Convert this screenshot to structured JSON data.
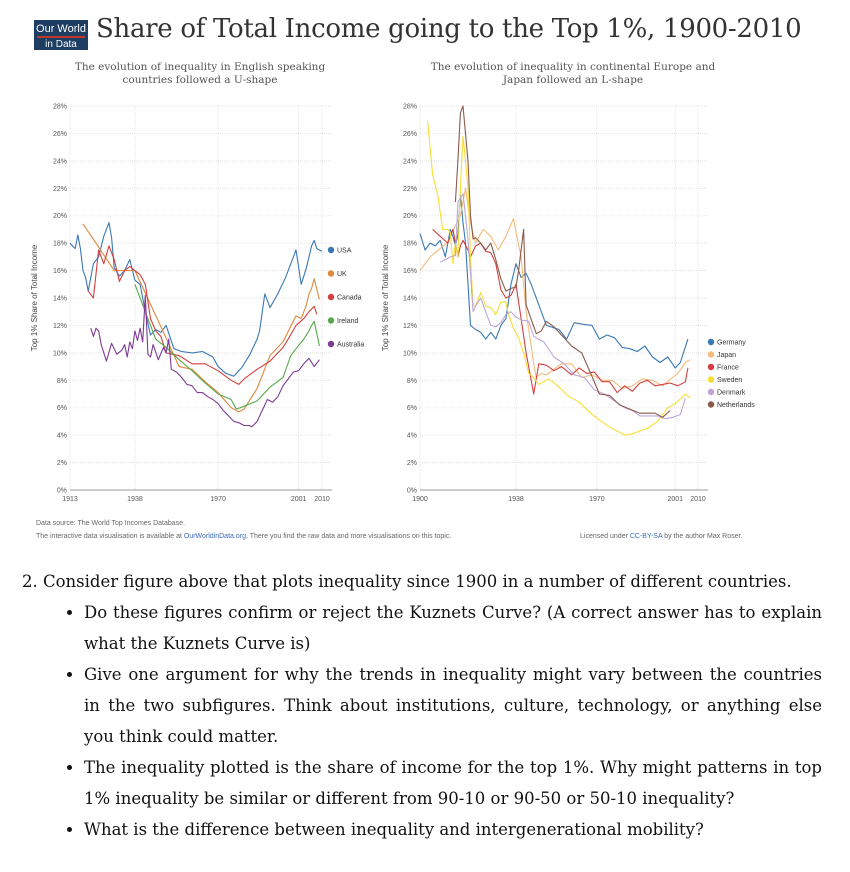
{
  "header": {
    "logo_line1": "Our World",
    "logo_line2": "in Data",
    "title": "Share of Total Income going to the Top 1%, 1900-2010"
  },
  "chart_data": [
    {
      "type": "line",
      "subtitle": "The evolution of inequality in English speaking countries followed a U-shape",
      "ylabel": "Top 1% Share of Total Income",
      "xlim": [
        1913,
        2010
      ],
      "ylim": [
        0,
        28
      ],
      "xticks": [
        "1913",
        "1938",
        "1970",
        "2001",
        "2010"
      ],
      "yticks": [
        "0%",
        "2%",
        "4%",
        "6%",
        "8%",
        "10%",
        "12%",
        "14%",
        "16%",
        "18%",
        "20%",
        "22%",
        "24%",
        "26%",
        "28%"
      ],
      "legend": "right",
      "grid": true,
      "series": [
        {
          "name": "USA",
          "color": "#3a78b5",
          "x": [
            1913,
            1915,
            1916,
            1917,
            1918,
            1919,
            1920,
            1922,
            1924,
            1926,
            1928,
            1929,
            1930,
            1932,
            1934,
            1936,
            1938,
            1940,
            1942,
            1944,
            1946,
            1948,
            1950,
            1953,
            1956,
            1960,
            1964,
            1968,
            1970,
            1973,
            1976,
            1979,
            1982,
            1985,
            1986,
            1988,
            1990,
            1993,
            1996,
            1999,
            2000,
            2002,
            2004,
            2006,
            2007,
            2008,
            2010
          ],
          "y": [
            18.0,
            17.6,
            18.6,
            17.6,
            16.0,
            15.5,
            14.5,
            16.5,
            17.0,
            18.5,
            19.5,
            18.4,
            16.2,
            15.6,
            16.0,
            16.8,
            15.3,
            15.0,
            13.0,
            11.3,
            11.7,
            11.5,
            12.0,
            10.3,
            10.1,
            10.0,
            10.1,
            9.7,
            9.0,
            8.5,
            8.3,
            8.9,
            9.8,
            11.0,
            11.6,
            14.3,
            13.3,
            14.3,
            15.5,
            17.0,
            17.5,
            15.0,
            16.2,
            17.8,
            18.2,
            17.6,
            17.4
          ]
        },
        {
          "name": "UK",
          "color": "#e0883c",
          "x": [
            1918,
            1923,
            1930,
            1938,
            1949,
            1955,
            1960,
            1965,
            1970,
            1975,
            1978,
            1980,
            1985,
            1990,
            1995,
            2000,
            2002,
            2004,
            2005,
            2006,
            2007,
            2009
          ],
          "y": [
            19.4,
            18.0,
            16.0,
            16.0,
            11.5,
            9.0,
            8.8,
            7.9,
            7.1,
            6.0,
            5.7,
            5.9,
            7.4,
            9.8,
            10.8,
            12.7,
            12.5,
            13.5,
            14.3,
            14.7,
            15.4,
            13.9
          ]
        },
        {
          "name": "Canada",
          "color": "#d33f3f",
          "x": [
            1920,
            1922,
            1924,
            1926,
            1928,
            1930,
            1932,
            1934,
            1936,
            1938,
            1940,
            1942,
            1944,
            1946,
            1948,
            1950,
            1955,
            1960,
            1965,
            1970,
            1975,
            1978,
            1980,
            1985,
            1990,
            1995,
            1997,
            2000,
            2003,
            2005,
            2007,
            2008
          ],
          "y": [
            14.5,
            14.0,
            17.5,
            16.5,
            17.8,
            16.8,
            15.2,
            16.0,
            16.3,
            16.0,
            15.7,
            15.0,
            12.5,
            11.6,
            11.2,
            10.0,
            9.8,
            9.2,
            9.2,
            8.7,
            8.0,
            7.7,
            8.1,
            8.8,
            9.4,
            10.4,
            11.0,
            12.0,
            12.5,
            13.0,
            13.4,
            12.8
          ]
        },
        {
          "name": "Ireland",
          "color": "#58a84a",
          "x": [
            1938,
            1943,
            1946,
            1950,
            1955,
            1960,
            1965,
            1970,
            1975,
            1977,
            1980,
            1985,
            1990,
            1995,
            1998,
            2000,
            2003,
            2005,
            2006,
            2007,
            2009
          ],
          "y": [
            15.0,
            12.5,
            11.0,
            10.4,
            9.5,
            8.7,
            7.8,
            7.0,
            6.6,
            5.9,
            6.1,
            6.5,
            7.5,
            8.2,
            9.8,
            10.3,
            11.0,
            11.6,
            12.0,
            12.3,
            10.5
          ]
        },
        {
          "name": "Australia",
          "color": "#7e3b94",
          "x": [
            1921,
            1922,
            1923,
            1924,
            1925,
            1927,
            1929,
            1931,
            1933,
            1934,
            1935,
            1936,
            1937,
            1938,
            1939,
            1940,
            1941,
            1942,
            1943,
            1944,
            1945,
            1947,
            1949,
            1950,
            1951,
            1952,
            1954,
            1956,
            1958,
            1960,
            1962,
            1964,
            1966,
            1968,
            1970,
            1972,
            1974,
            1976,
            1978,
            1980,
            1982,
            1983,
            1985,
            1987,
            1989,
            1991,
            1993,
            1995,
            1997,
            1999,
            2001,
            2003,
            2005,
            2007,
            2009
          ],
          "y": [
            11.8,
            11.2,
            11.8,
            11.6,
            10.6,
            9.4,
            10.7,
            9.9,
            10.2,
            10.6,
            9.7,
            10.8,
            10.3,
            11.6,
            10.9,
            11.8,
            10.8,
            14.2,
            9.9,
            9.7,
            10.6,
            9.5,
            10.4,
            10.0,
            11.0,
            8.8,
            8.6,
            8.2,
            7.7,
            7.6,
            7.1,
            7.1,
            6.8,
            6.6,
            6.3,
            5.8,
            5.4,
            5.0,
            4.9,
            4.7,
            4.7,
            4.6,
            5.0,
            5.8,
            6.6,
            6.4,
            6.8,
            7.6,
            8.1,
            8.6,
            8.7,
            9.2,
            9.6,
            9.0,
            9.5
          ]
        }
      ]
    },
    {
      "type": "line",
      "subtitle": "The evolution of inequality in continental Europe and Japan followed an L-shape",
      "ylabel": "Top 1% Share of Total Income",
      "xlim": [
        1900,
        2010
      ],
      "ylim": [
        0,
        28
      ],
      "xticks": [
        "1900",
        "1938",
        "1970",
        "2001",
        "2010"
      ],
      "yticks": [
        "0%",
        "2%",
        "4%",
        "6%",
        "8%",
        "10%",
        "12%",
        "14%",
        "16%",
        "18%",
        "20%",
        "22%",
        "24%",
        "26%",
        "28%"
      ],
      "legend": "right",
      "grid": true,
      "series": [
        {
          "name": "Germany",
          "color": "#3a78b5",
          "x": [
            1900,
            1902,
            1904,
            1906,
            1908,
            1910,
            1912,
            1913,
            1914,
            1915,
            1916,
            1917,
            1918,
            1920,
            1922,
            1924,
            1926,
            1928,
            1930,
            1932,
            1934,
            1936,
            1938,
            1940,
            1942,
            1944,
            1950,
            1955,
            1958,
            1961,
            1964,
            1968,
            1971,
            1974,
            1977,
            1980,
            1983,
            1986,
            1989,
            1992,
            1995,
            1998,
            2001,
            2003,
            2006
          ],
          "y": [
            18.7,
            17.5,
            18.0,
            17.8,
            18.2,
            17.0,
            19.0,
            18.5,
            17.8,
            18.6,
            21.5,
            19.5,
            18.0,
            12.0,
            11.7,
            11.5,
            11.0,
            11.5,
            11.0,
            12.0,
            12.5,
            15.0,
            16.5,
            15.5,
            15.8,
            15.0,
            12.0,
            11.7,
            11.0,
            12.2,
            12.1,
            12.0,
            11.0,
            11.3,
            11.1,
            10.4,
            10.3,
            10.1,
            10.5,
            9.7,
            9.3,
            9.7,
            8.9,
            9.3,
            11.0
          ]
        },
        {
          "name": "Japan",
          "color": "#f4bb7a",
          "x": [
            1900,
            1904,
            1908,
            1911,
            1913,
            1916,
            1918,
            1920,
            1922,
            1925,
            1928,
            1931,
            1934,
            1937,
            1938,
            1940,
            1942,
            1944,
            1945,
            1946,
            1948,
            1950,
            1953,
            1956,
            1960,
            1964,
            1968,
            1972,
            1976,
            1980,
            1984,
            1988,
            1992,
            1996,
            2000,
            2002,
            2005,
            2007
          ],
          "y": [
            16.0,
            17.0,
            17.6,
            18.1,
            18.9,
            20.0,
            22.0,
            19.5,
            18.0,
            19.0,
            18.5,
            17.5,
            18.5,
            19.8,
            18.8,
            17.0,
            13.0,
            10.5,
            9.2,
            8.2,
            8.5,
            8.4,
            8.8,
            9.2,
            9.2,
            8.2,
            8.4,
            8.0,
            8.0,
            7.4,
            7.6,
            8.1,
            8.0,
            7.6,
            8.2,
            8.5,
            9.3,
            9.5
          ]
        },
        {
          "name": "France",
          "color": "#d33f3f",
          "x": [
            1905,
            1908,
            1911,
            1913,
            1915,
            1916,
            1917,
            1919,
            1920,
            1922,
            1924,
            1926,
            1928,
            1930,
            1932,
            1934,
            1936,
            1938,
            1940,
            1942,
            1944,
            1945,
            1947,
            1950,
            1953,
            1956,
            1960,
            1963,
            1966,
            1969,
            1972,
            1975,
            1978,
            1981,
            1984,
            1987,
            1990,
            1993,
            1996,
            1999,
            2002,
            2005,
            2006
          ],
          "y": [
            19.0,
            18.5,
            18.0,
            19.0,
            17.0,
            17.8,
            18.2,
            17.5,
            17.0,
            17.8,
            18.0,
            17.4,
            17.3,
            16.5,
            14.6,
            14.0,
            14.2,
            15.0,
            12.5,
            10.0,
            8.0,
            7.0,
            9.2,
            9.1,
            8.7,
            9.0,
            8.4,
            8.9,
            8.5,
            8.6,
            7.9,
            7.9,
            7.1,
            7.6,
            7.2,
            7.8,
            8.0,
            7.6,
            7.7,
            7.8,
            7.6,
            7.9,
            8.9
          ]
        },
        {
          "name": "Sweden",
          "color": "#f7de35",
          "x": [
            1903,
            1905,
            1907,
            1909,
            1911,
            1912,
            1913,
            1914,
            1915,
            1916,
            1917,
            1918,
            1919,
            1920,
            1921,
            1922,
            1924,
            1926,
            1928,
            1930,
            1932,
            1934,
            1935,
            1937,
            1939,
            1941,
            1943,
            1945,
            1947,
            1951,
            1955,
            1959,
            1963,
            1967,
            1971,
            1975,
            1979,
            1981,
            1984,
            1987,
            1990,
            1994,
            1998,
            2001,
            2005,
            2007
          ],
          "y": [
            26.9,
            23.0,
            21.5,
            19.0,
            19.0,
            18.8,
            16.5,
            18.0,
            17.0,
            22.0,
            25.8,
            24.0,
            22.0,
            17.0,
            13.5,
            13.4,
            14.4,
            13.4,
            13.3,
            12.8,
            13.7,
            13.7,
            12.8,
            11.8,
            11.1,
            10.0,
            8.5,
            8.2,
            7.7,
            8.1,
            7.5,
            6.8,
            6.4,
            5.7,
            5.1,
            4.6,
            4.2,
            4.0,
            4.1,
            4.3,
            4.5,
            5.0,
            6.0,
            6.3,
            7.0,
            6.7
          ]
        },
        {
          "name": "Denmark",
          "color": "#bca6d9",
          "x": [
            1908,
            1910,
            1912,
            1914,
            1915,
            1916,
            1917,
            1918,
            1919,
            1920,
            1921,
            1922,
            1924,
            1926,
            1928,
            1930,
            1932,
            1934,
            1936,
            1938,
            1940,
            1943,
            1945,
            1949,
            1953,
            1957,
            1961,
            1965,
            1969,
            1973,
            1977,
            1981,
            1984,
            1987,
            1990,
            1994,
            1997,
            2000,
            2003,
            2005
          ],
          "y": [
            16.6,
            16.8,
            17.0,
            17.1,
            21.0,
            21.3,
            21.6,
            20.0,
            18.3,
            15.8,
            13.0,
            13.4,
            14.0,
            13.0,
            12.0,
            11.9,
            12.2,
            12.8,
            13.0,
            12.6,
            12.4,
            12.3,
            11.2,
            10.8,
            9.7,
            9.2,
            8.4,
            8.2,
            7.3,
            7.0,
            6.5,
            6.0,
            5.8,
            5.4,
            5.4,
            5.4,
            5.2,
            5.3,
            5.5,
            6.7
          ]
        },
        {
          "name": "Netherlands",
          "color": "#8a5a4a",
          "x": [
            1914,
            1915,
            1916,
            1917,
            1918,
            1919,
            1920,
            1921,
            1922,
            1924,
            1926,
            1928,
            1930,
            1932,
            1934,
            1936,
            1938,
            1939,
            1941,
            1942,
            1946,
            1948,
            1950,
            1953,
            1956,
            1960,
            1964,
            1968,
            1971,
            1975,
            1979,
            1983,
            1987,
            1990,
            1993,
            1996,
            1999
          ],
          "y": [
            21.0,
            24.0,
            27.5,
            28.0,
            26.0,
            24.0,
            20.0,
            18.3,
            18.4,
            18.0,
            17.5,
            18.0,
            16.8,
            15.4,
            14.5,
            14.7,
            14.8,
            16.0,
            19.0,
            13.5,
            11.4,
            11.6,
            12.3,
            11.9,
            11.3,
            10.5,
            10.0,
            8.3,
            7.0,
            6.9,
            6.2,
            5.9,
            5.6,
            5.6,
            5.6,
            5.3,
            5.8
          ]
        }
      ]
    }
  ],
  "footer": {
    "source": "Data source: The World Top Incomes Database.",
    "interactive_prefix": "The interactive data visualisation is available at ",
    "interactive_link": "OurWorldinData.org",
    "interactive_suffix": ". There you find the raw data and more visualisations on this topic.",
    "license_prefix": "Licensed under ",
    "license_link": "CC-BY-SA",
    "license_suffix": " by the author Max Roser."
  },
  "question": {
    "heading": "2.  Consider figure above that plots inequality since 1900 in a number of different countries.",
    "bullets": [
      "Do these figures confirm or reject the Kuznets Curve? (A correct answer has to explain what the Kuznets Curve is)",
      "Give one argument for why the trends in inequality might vary between the countries in the two subfigures. Think about institutions, culture, technology, or anything else you think could matter.",
      "The inequality plotted is the share of income for the top 1%. Why might patterns in top 1% inequality be similar or different from 90-10 or 90-50 or 50-10 inequality?",
      "What is the difference between inequality and intergenerational mobility?"
    ]
  }
}
